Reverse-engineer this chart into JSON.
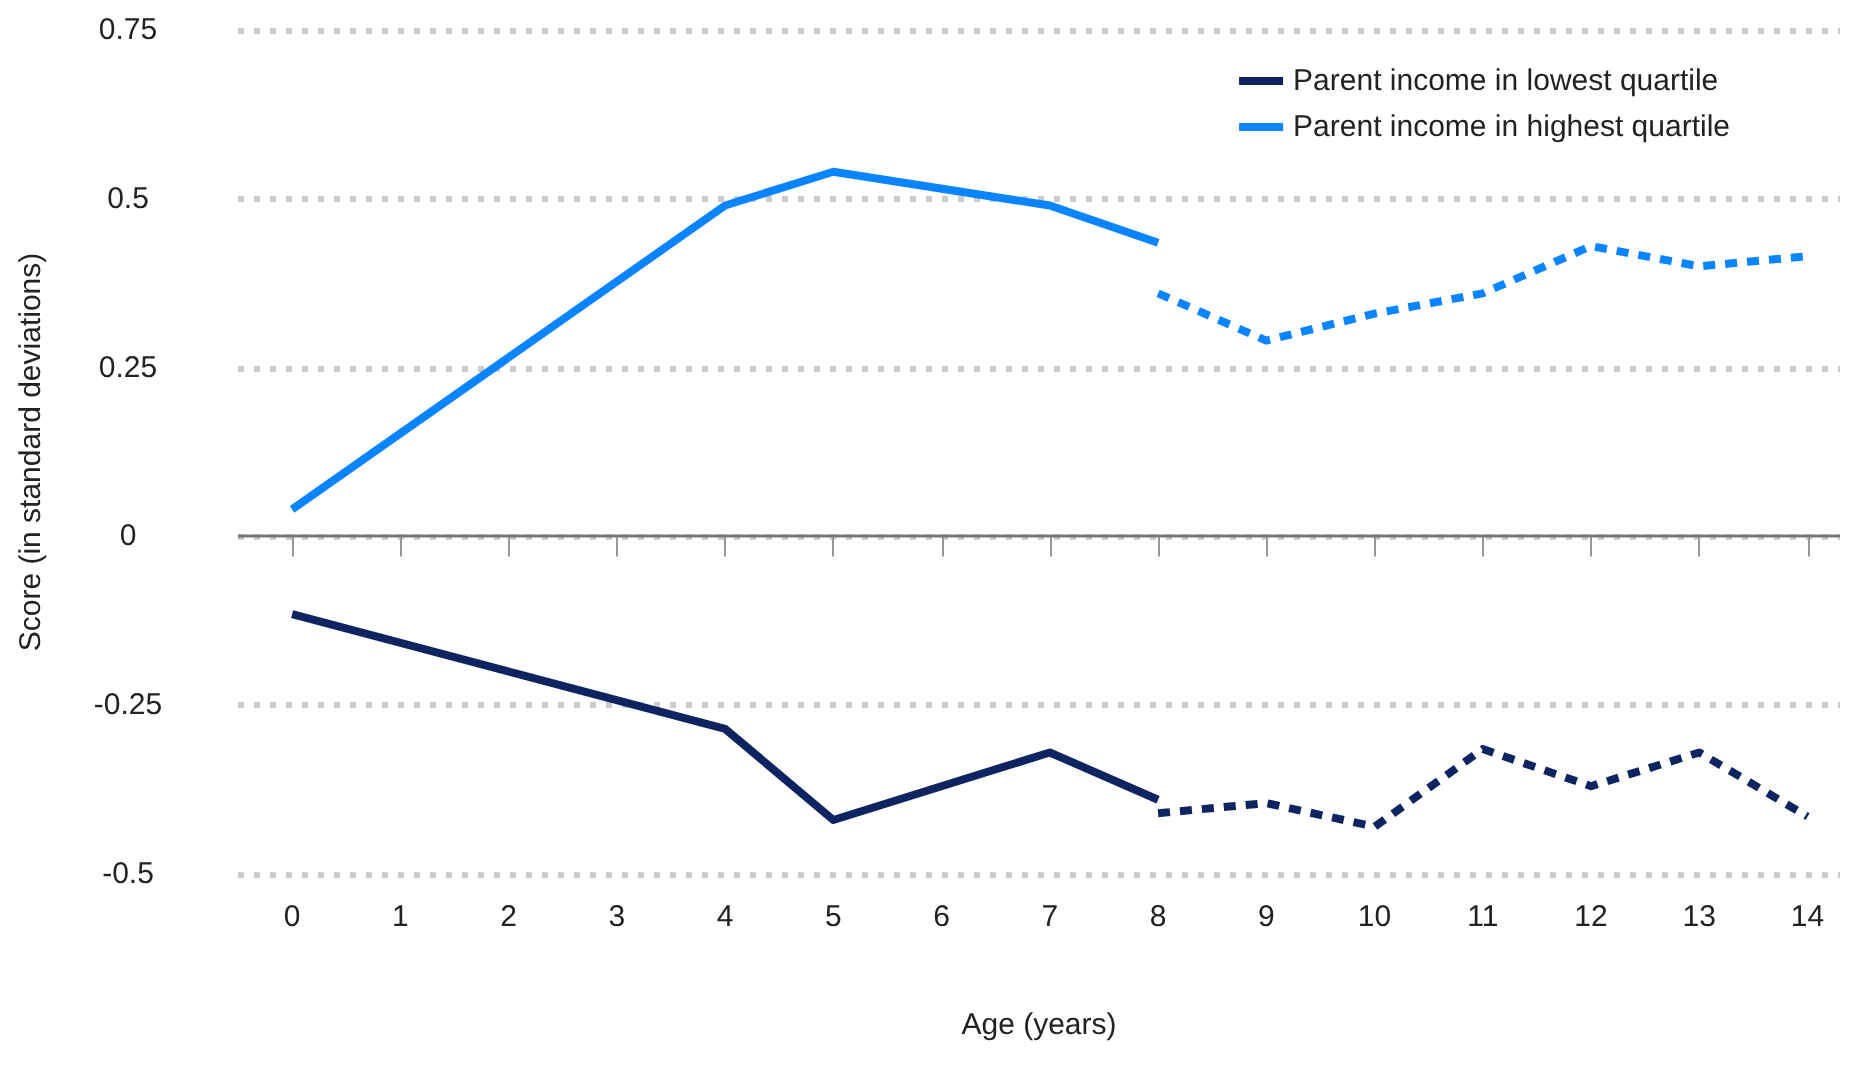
{
  "chart_data": {
    "type": "line",
    "xlabel": "Age (years)",
    "ylabel": "Score (in standard deviations)",
    "xlim": [
      -0.5,
      14.3
    ],
    "xticks": [
      0,
      1,
      2,
      3,
      4,
      5,
      6,
      7,
      8,
      9,
      10,
      11,
      12,
      13,
      14
    ],
    "ylim": [
      -0.5,
      0.75
    ],
    "yticks": [
      {
        "value": -0.5,
        "label": "-0.5"
      },
      {
        "value": -0.25,
        "label": "-0.25"
      },
      0,
      0.25,
      0.5,
      0.75
    ],
    "grid": "y",
    "legend": "top right",
    "marker": "none",
    "ref_lines": [
      {
        "axis": "y",
        "value": 0,
        "color": "#777777",
        "line_style": "solid"
      }
    ],
    "series": [
      {
        "name": "Parent income in lowest quartile",
        "color": "#0d2461",
        "line_style": "solid",
        "x": [
          0,
          4,
          5,
          7,
          8
        ],
        "values": [
          -0.115,
          -0.285,
          -0.42,
          -0.32,
          -0.39
        ]
      },
      {
        "name": "Parent income in highest quartile",
        "color": "#0a84ff",
        "line_style": "solid",
        "x": [
          0,
          4,
          5,
          7,
          8
        ],
        "values": [
          0.04,
          0.49,
          0.54,
          0.49,
          0.435
        ]
      },
      {
        "color": "#0d2461",
        "line_style": "dashed",
        "x": [
          8,
          9,
          10,
          11,
          12,
          13,
          14
        ],
        "values": [
          -0.41,
          -0.395,
          -0.43,
          -0.315,
          -0.37,
          -0.32,
          -0.415
        ]
      },
      {
        "color": "#0a84ff",
        "line_style": "dashed",
        "x": [
          8,
          9,
          10,
          11,
          12,
          13,
          14
        ],
        "values": [
          0.36,
          0.29,
          0.33,
          0.36,
          0.43,
          0.4,
          0.415
        ]
      }
    ]
  }
}
